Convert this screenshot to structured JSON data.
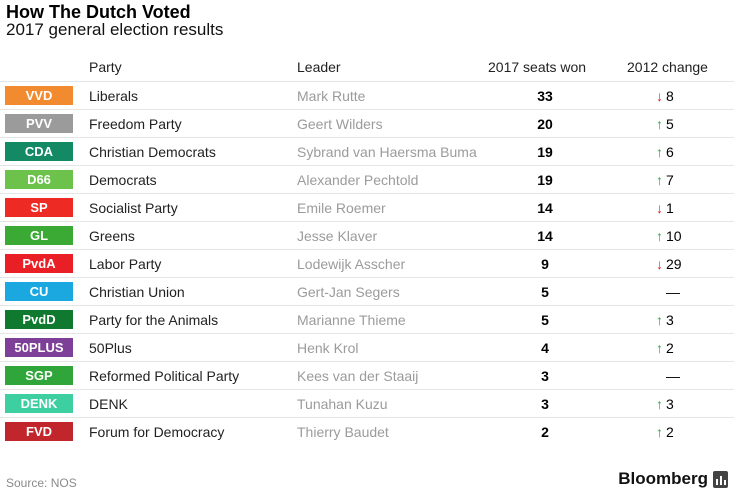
{
  "title": "How The Dutch Voted",
  "subtitle": "2017 general election results",
  "headers": {
    "party": "Party",
    "leader": "Leader",
    "seats": "2017 seats won",
    "change": "2012 change"
  },
  "rows": [
    {
      "abbr": "VVD",
      "color": "#f28a30",
      "party": "Liberals",
      "leader": "Mark Rutte",
      "seats": "33",
      "change": "8",
      "dir": "down"
    },
    {
      "abbr": "PVV",
      "color": "#9b9b9b",
      "party": "Freedom Party",
      "leader": "Geert Wilders",
      "seats": "20",
      "change": "5",
      "dir": "up"
    },
    {
      "abbr": "CDA",
      "color": "#138a64",
      "party": "Christian Democrats",
      "leader": "Sybrand van Haersma Buma",
      "seats": "19",
      "change": "6",
      "dir": "up"
    },
    {
      "abbr": "D66",
      "color": "#6cc24a",
      "party": "Democrats",
      "leader": "Alexander Pechtold",
      "seats": "19",
      "change": "7",
      "dir": "up"
    },
    {
      "abbr": "SP",
      "color": "#ee2a24",
      "party": "Socialist Party",
      "leader": "Emile Roemer",
      "seats": "14",
      "change": "1",
      "dir": "down"
    },
    {
      "abbr": "GL",
      "color": "#3aaa35",
      "party": "Greens",
      "leader": "Jesse Klaver",
      "seats": "14",
      "change": "10",
      "dir": "up"
    },
    {
      "abbr": "PvdA",
      "color": "#ea1f26",
      "party": "Labor Party",
      "leader": "Lodewijk Asscher",
      "seats": "9",
      "change": "29",
      "dir": "down"
    },
    {
      "abbr": "CU",
      "color": "#1ba8e0",
      "party": "Christian Union",
      "leader": "Gert-Jan Segers",
      "seats": "5",
      "change": "—",
      "dir": "none"
    },
    {
      "abbr": "PvdD",
      "color": "#0f7a2f",
      "party": "Party for the Animals",
      "leader": "Marianne Thieme",
      "seats": "5",
      "change": "3",
      "dir": "up"
    },
    {
      "abbr": "50PLUS",
      "color": "#7d3f98",
      "party": "50Plus",
      "leader": "Henk Krol",
      "seats": "4",
      "change": "2",
      "dir": "up"
    },
    {
      "abbr": "SGP",
      "color": "#2fa53a",
      "party": "Reformed Political Party",
      "leader": "Kees van der Staaij",
      "seats": "3",
      "change": "—",
      "dir": "none"
    },
    {
      "abbr": "DENK",
      "color": "#3dcfa0",
      "party": "DENK",
      "leader": "Tunahan Kuzu",
      "seats": "3",
      "change": "3",
      "dir": "up"
    },
    {
      "abbr": "FVD",
      "color": "#c0262c",
      "party": "Forum for Democracy",
      "leader": "Thierry Baudet",
      "seats": "2",
      "change": "2",
      "dir": "up"
    }
  ],
  "arrow_colors": {
    "up": "#2ea043",
    "down": "#e0271c"
  },
  "source": "Source: NOS",
  "brand": "Bloomberg"
}
